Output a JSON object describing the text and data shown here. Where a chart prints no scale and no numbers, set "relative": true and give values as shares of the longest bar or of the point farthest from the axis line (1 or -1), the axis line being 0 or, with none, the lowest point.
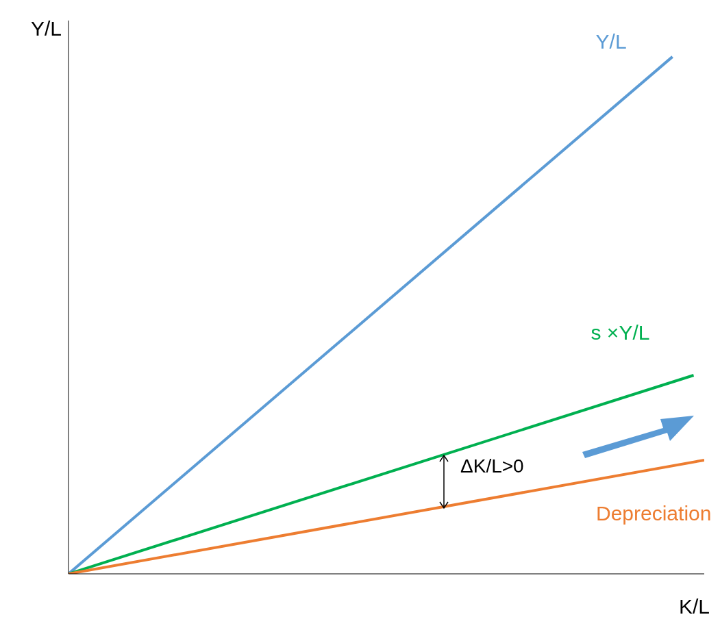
{
  "chart_data": {
    "type": "line",
    "relative": true,
    "xlabel": "K/L",
    "ylabel": "Y/L",
    "categories": [
      null,
      null,
      null,
      null,
      null,
      null,
      null,
      null,
      null,
      null,
      null,
      null,
      null,
      null,
      null,
      null,
      null,
      null,
      null,
      null,
      null,
      null,
      null,
      null,
      null,
      null,
      null,
      null,
      null,
      null,
      null,
      null,
      null,
      null,
      null,
      null,
      null,
      null,
      null,
      null,
      null,
      null,
      null,
      null,
      null,
      null,
      null,
      null,
      null,
      null,
      null,
      null,
      null,
      null,
      null,
      null,
      null,
      null,
      null,
      null,
      null
    ],
    "series": [
      {
        "name": "Y/L",
        "color": "#5b9bd5",
        "values": [
          0,
          null,
          null,
          null,
          null,
          null,
          null,
          null,
          null,
          null,
          null,
          null,
          null,
          null,
          null,
          null,
          null,
          null,
          null,
          null,
          null,
          null,
          null,
          null,
          null,
          null,
          null,
          null,
          null,
          null,
          null,
          null,
          null,
          null,
          null,
          null,
          null,
          null,
          null,
          null,
          null,
          null,
          null,
          null,
          null,
          null,
          null,
          null,
          null,
          null,
          null,
          null,
          null,
          null,
          null,
          null,
          null,
          1,
          null,
          null,
          null
        ]
      },
      {
        "name": "s ×Y/L",
        "color": "#00b050",
        "values": [
          0,
          null,
          null,
          null,
          null,
          null,
          null,
          null,
          null,
          null,
          null,
          null,
          null,
          null,
          null,
          null,
          null,
          null,
          null,
          null,
          null,
          null,
          null,
          null,
          null,
          null,
          null,
          null,
          null,
          null,
          null,
          null,
          null,
          null,
          null,
          null,
          null,
          null,
          null,
          null,
          null,
          null,
          null,
          null,
          null,
          null,
          null,
          null,
          null,
          null,
          null,
          null,
          null,
          null,
          null,
          null,
          null,
          null,
          null,
          0.384,
          null
        ]
      },
      {
        "name": "Depreciation",
        "color": "#ed7d31",
        "values": [
          0,
          null,
          null,
          null,
          null,
          null,
          null,
          null,
          null,
          null,
          null,
          null,
          null,
          null,
          null,
          null,
          null,
          null,
          null,
          null,
          null,
          null,
          null,
          null,
          null,
          null,
          null,
          null,
          null,
          null,
          null,
          null,
          null,
          null,
          null,
          null,
          null,
          null,
          null,
          null,
          null,
          null,
          null,
          null,
          null,
          null,
          null,
          null,
          null,
          null,
          null,
          null,
          null,
          null,
          null,
          null,
          null,
          null,
          null,
          null,
          0.22
        ]
      }
    ],
    "annotations": [
      "ΔK/L>0"
    ],
    "grid": false,
    "legend": false,
    "marker": "none",
    "line_style": "solid"
  }
}
